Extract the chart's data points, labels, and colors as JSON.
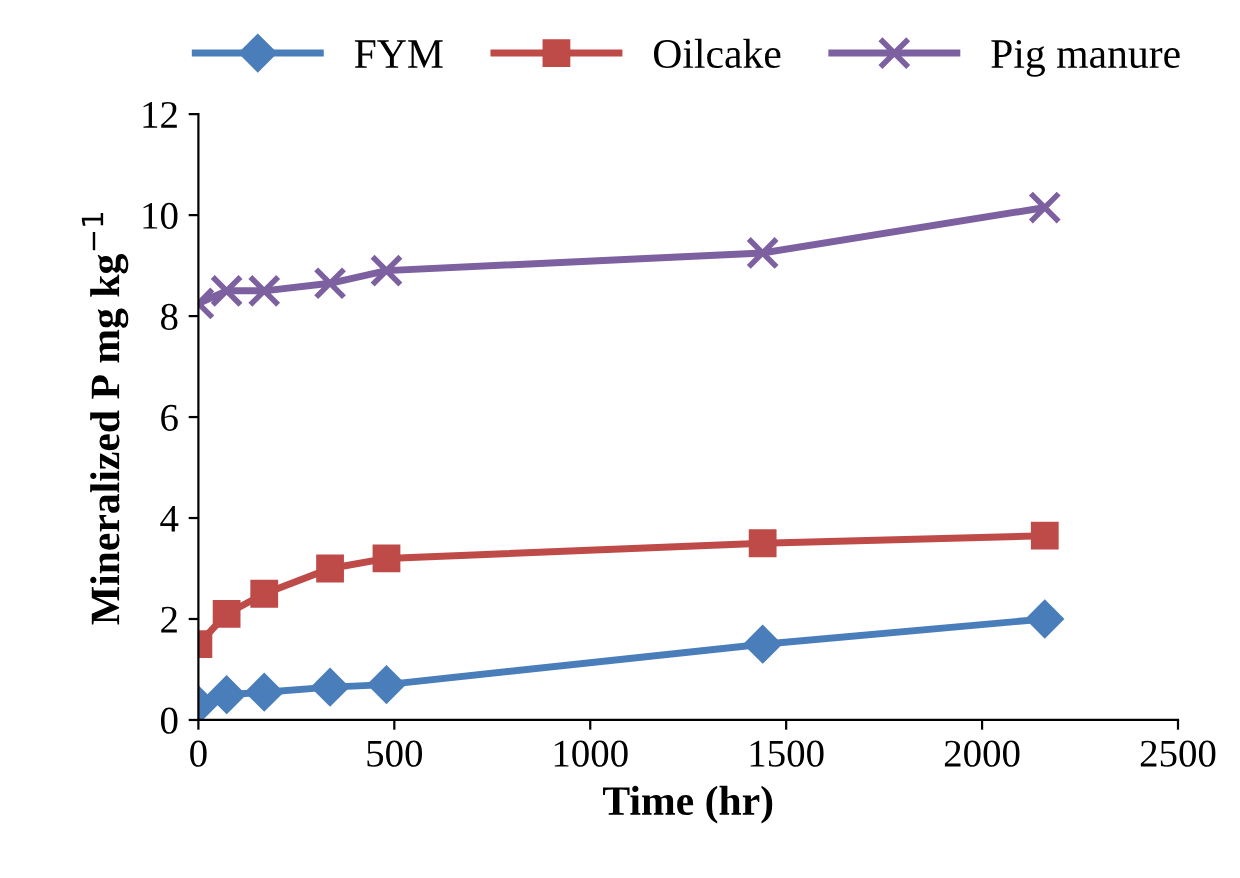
{
  "chart_data": {
    "type": "line",
    "xlabel": "Time (hr)",
    "ylabel": "Mineralized P mg kg$^{−1}$",
    "x": [
      0,
      72,
      168,
      336,
      480,
      1440,
      2160
    ],
    "series": [
      {
        "name": "FYM",
        "color": "#4a7ebb",
        "marker": "diamond",
        "values": [
          0.3,
          0.5,
          0.55,
          0.65,
          0.7,
          1.5,
          2.0
        ]
      },
      {
        "name": "Oilcake",
        "color": "#be4b48",
        "marker": "square",
        "values": [
          1.5,
          2.1,
          2.5,
          3.0,
          3.2,
          3.5,
          3.65
        ]
      },
      {
        "name": "Pig manure",
        "color": "#7d60a0",
        "marker": "cross",
        "values": [
          8.25,
          8.5,
          8.5,
          8.65,
          8.9,
          9.25,
          10.15
        ]
      }
    ],
    "xlim": [
      0,
      2500
    ],
    "xticks": [
      0,
      500,
      1000,
      1500,
      2000,
      2500
    ],
    "ylim": [
      0,
      12
    ],
    "yticks": [
      0,
      2,
      4,
      6,
      8,
      10,
      12
    ],
    "grid": false,
    "legend": "top",
    "line_style": "solid"
  }
}
